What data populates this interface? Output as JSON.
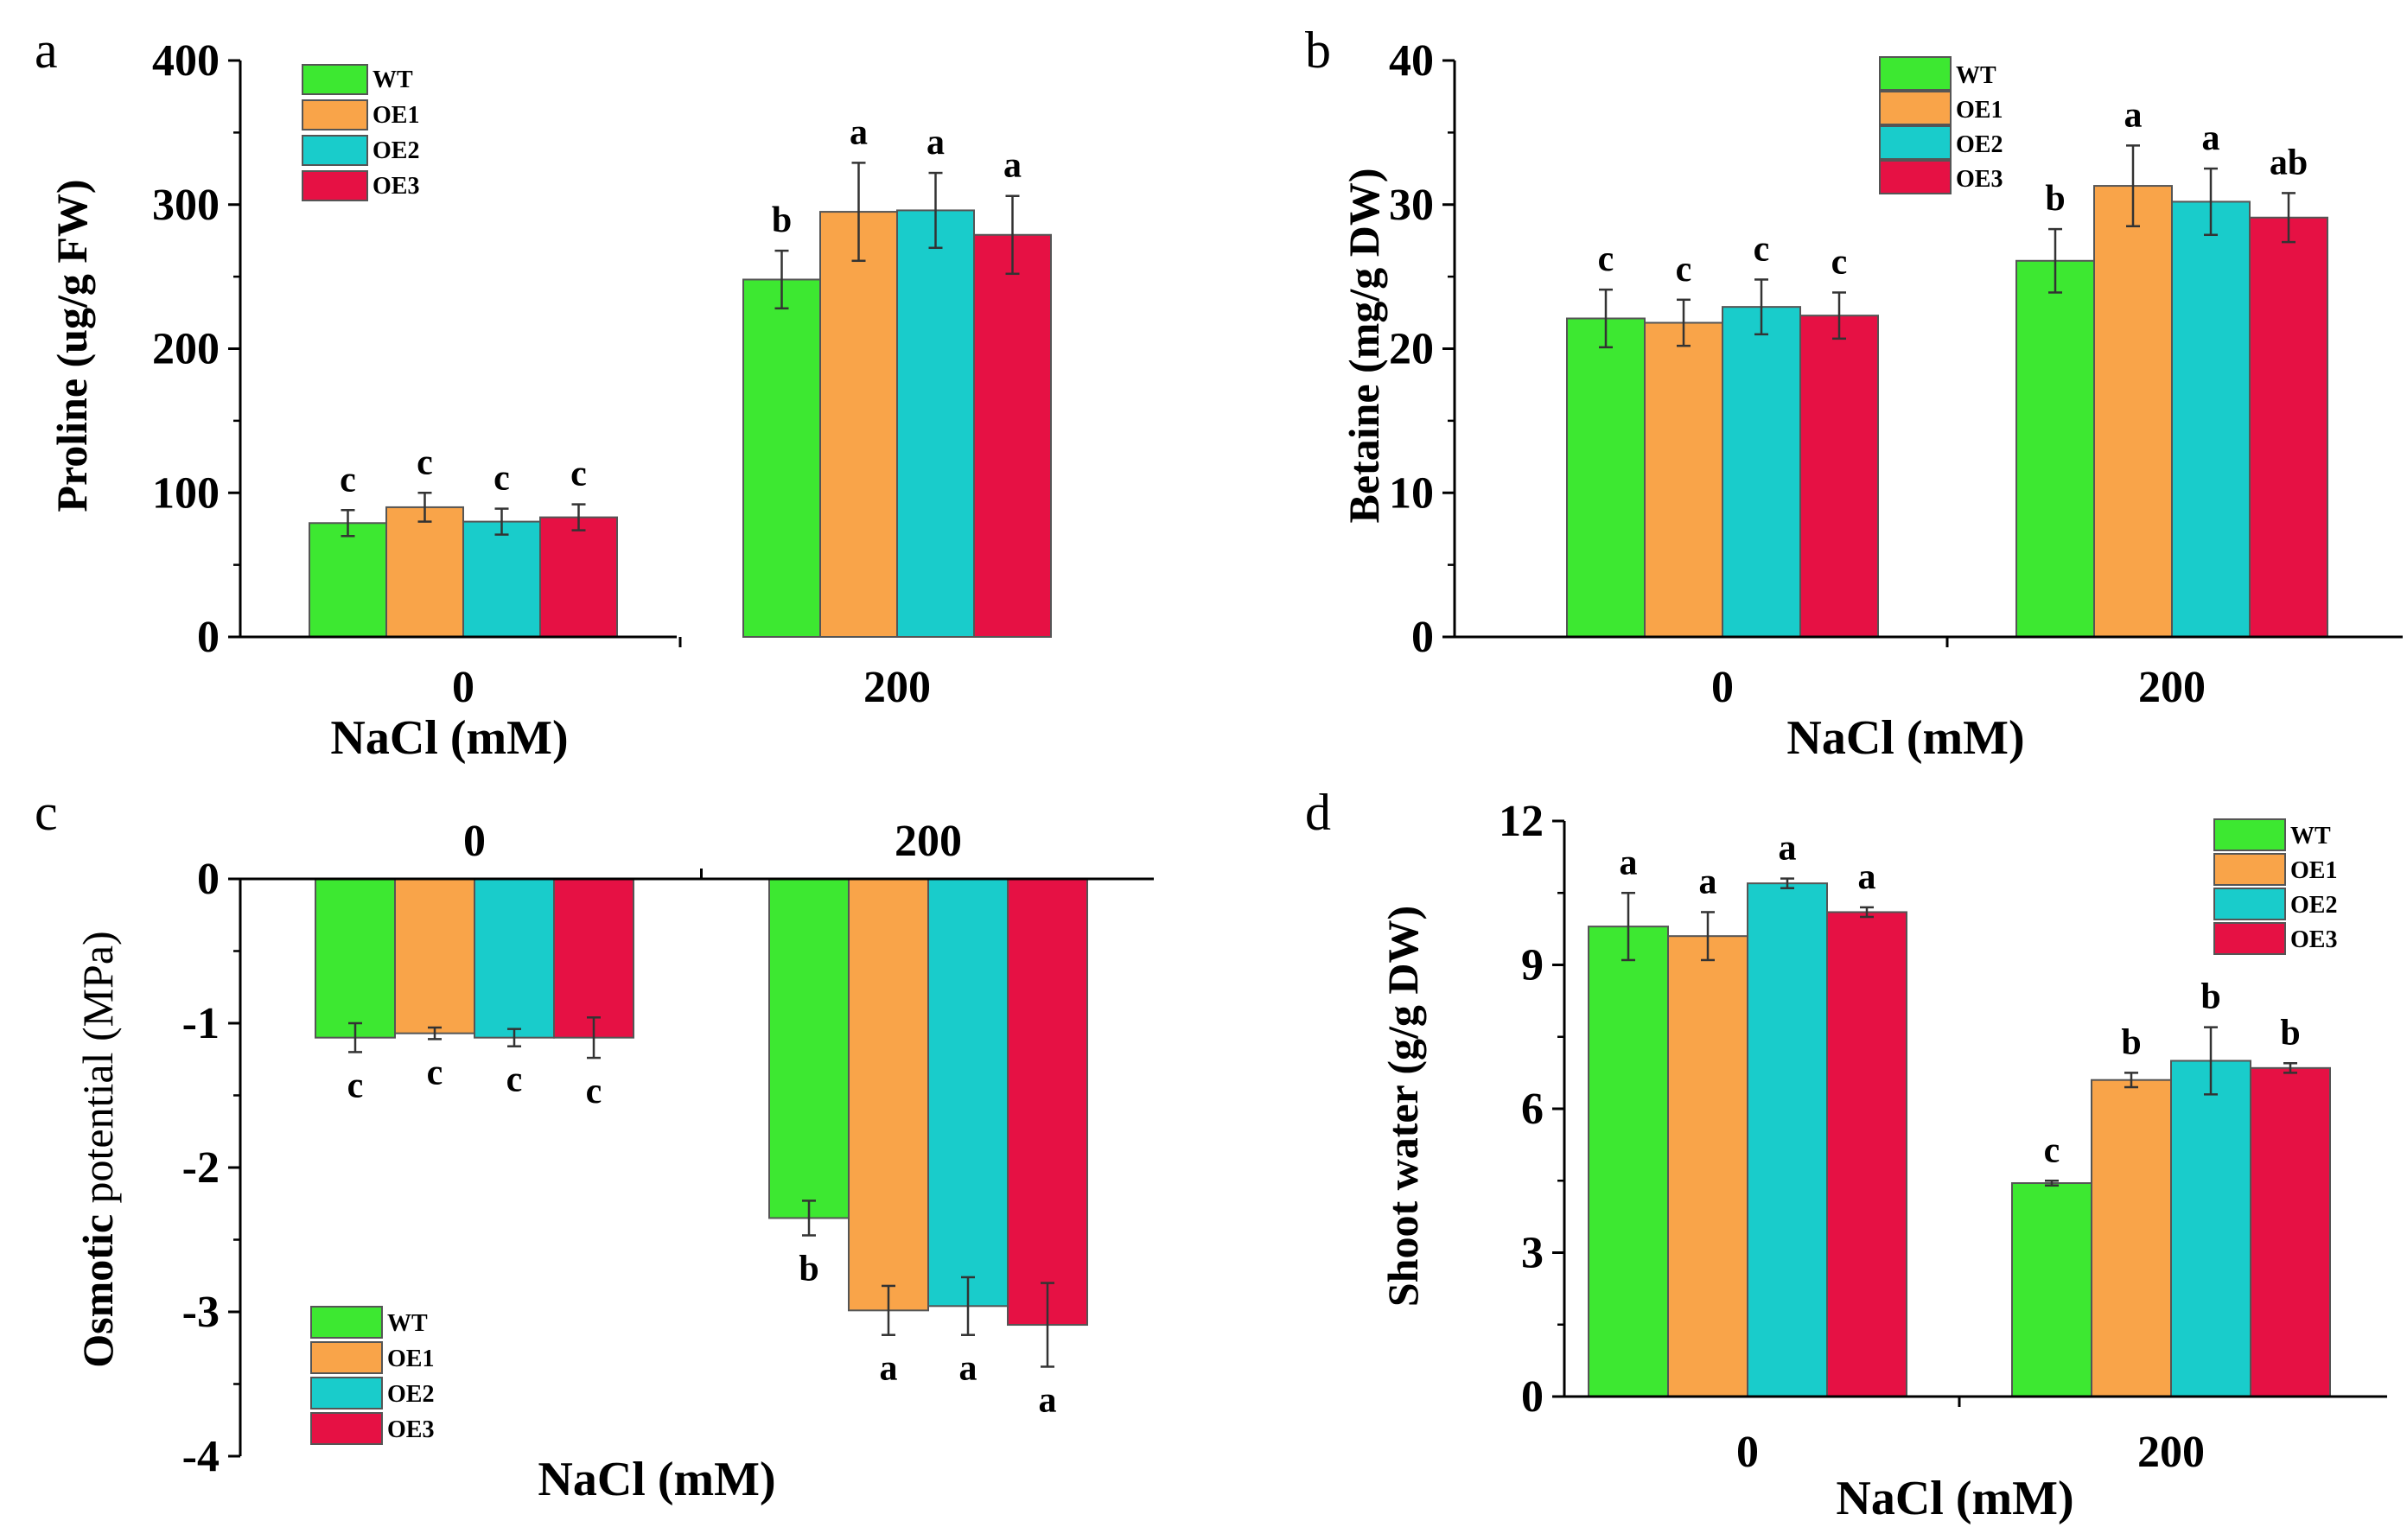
{
  "colors": {
    "WT": "#3de831",
    "OE1": "#f9a449",
    "OE2": "#19cccb",
    "OE3": "#e61144"
  },
  "chart_data": [
    {
      "panel_label": "a",
      "type": "bar",
      "categories": [
        "0",
        "200"
      ],
      "series": [
        {
          "name": "WT",
          "values": [
            79,
            248
          ],
          "errors": [
            9,
            20
          ],
          "sig": [
            "c",
            "b"
          ]
        },
        {
          "name": "OE1",
          "values": [
            90,
            295
          ],
          "errors": [
            10,
            34
          ],
          "sig": [
            "c",
            "a"
          ]
        },
        {
          "name": "OE2",
          "values": [
            80,
            296
          ],
          "errors": [
            9,
            26
          ],
          "sig": [
            "c",
            "a"
          ]
        },
        {
          "name": "OE3",
          "values": [
            83,
            279
          ],
          "errors": [
            9,
            27
          ],
          "sig": [
            "c",
            "a"
          ]
        }
      ],
      "xlabel": "NaCl (mM)",
      "ylabel": "Proline (ug/g FW)",
      "ylim": [
        0,
        400
      ],
      "yticks": [
        0,
        100,
        200,
        300,
        400
      ],
      "legend": "top-left"
    },
    {
      "panel_label": "b",
      "type": "bar",
      "categories": [
        "0",
        "200"
      ],
      "series": [
        {
          "name": "WT",
          "values": [
            22.1,
            26.1
          ],
          "errors": [
            2.0,
            2.2
          ],
          "sig": [
            "c",
            "b"
          ]
        },
        {
          "name": "OE1",
          "values": [
            21.8,
            31.3
          ],
          "errors": [
            1.6,
            2.8
          ],
          "sig": [
            "c",
            "a"
          ]
        },
        {
          "name": "OE2",
          "values": [
            22.9,
            30.2
          ],
          "errors": [
            1.9,
            2.3
          ],
          "sig": [
            "c",
            "a"
          ]
        },
        {
          "name": "OE3",
          "values": [
            22.3,
            29.1
          ],
          "errors": [
            1.6,
            1.7
          ],
          "sig": [
            "c",
            "ab"
          ]
        }
      ],
      "xlabel": "NaCl (mM)",
      "ylabel": "Betaine (mg/g DW)",
      "ylim": [
        0,
        40
      ],
      "yticks": [
        0,
        10,
        20,
        30,
        40
      ],
      "legend": "top-center"
    },
    {
      "panel_label": "c",
      "type": "bar",
      "categories": [
        "0",
        "200"
      ],
      "series": [
        {
          "name": "WT",
          "values": [
            -1.1,
            -2.35
          ],
          "errors": [
            0.1,
            0.12
          ],
          "sig": [
            "c",
            "b"
          ]
        },
        {
          "name": "OE1",
          "values": [
            -1.07,
            -2.99
          ],
          "errors": [
            0.04,
            0.17
          ],
          "sig": [
            "c",
            "a"
          ]
        },
        {
          "name": "OE2",
          "values": [
            -1.1,
            -2.96
          ],
          "errors": [
            0.06,
            0.2
          ],
          "sig": [
            "c",
            "a"
          ]
        },
        {
          "name": "OE3",
          "values": [
            -1.1,
            -3.09
          ],
          "errors": [
            0.14,
            0.29
          ],
          "sig": [
            "c",
            "a"
          ]
        }
      ],
      "xlabel": "NaCl (mM)",
      "ylabel_parts": [
        "Osmotic",
        " potential (MPa)"
      ],
      "ylim": [
        -4,
        0
      ],
      "yticks": [
        0,
        -1,
        -2,
        -3,
        -4
      ],
      "legend": "bottom-left"
    },
    {
      "panel_label": "d",
      "type": "bar",
      "categories": [
        "0",
        "200"
      ],
      "series": [
        {
          "name": "WT",
          "values": [
            9.8,
            4.45
          ],
          "errors": [
            0.7,
            0.05
          ],
          "sig": [
            "a",
            "c"
          ]
        },
        {
          "name": "OE1",
          "values": [
            9.6,
            6.6
          ],
          "errors": [
            0.5,
            0.15
          ],
          "sig": [
            "a",
            "b"
          ]
        },
        {
          "name": "OE2",
          "values": [
            10.7,
            7.0
          ],
          "errors": [
            0.1,
            0.7
          ],
          "sig": [
            "a",
            "b"
          ]
        },
        {
          "name": "OE3",
          "values": [
            10.1,
            6.85
          ],
          "errors": [
            0.1,
            0.1
          ],
          "sig": [
            "a",
            "b"
          ]
        }
      ],
      "xlabel": "NaCl (mM)",
      "ylabel": "Shoot water (g/g DW)",
      "ylim": [
        0,
        12
      ],
      "yticks": [
        0,
        3,
        6,
        9,
        12
      ],
      "legend": "top-right"
    }
  ]
}
